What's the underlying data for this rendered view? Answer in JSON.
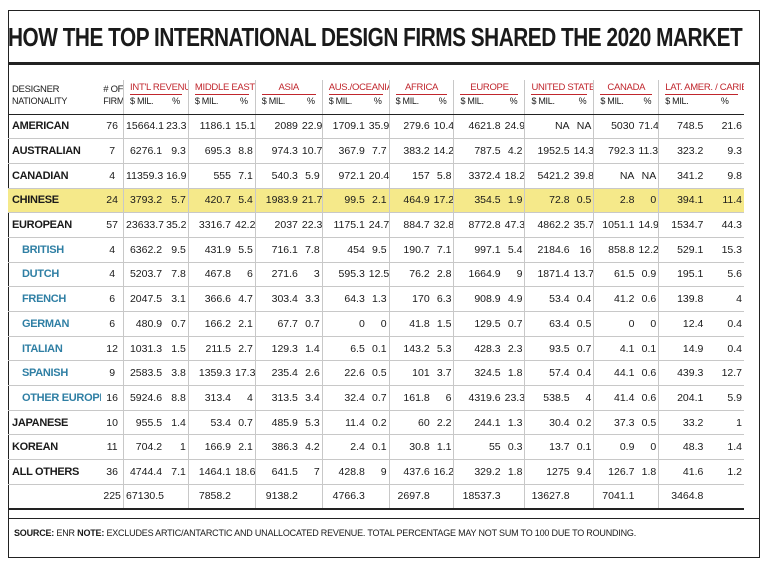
{
  "title": "HOW THE TOP INTERNATIONAL DESIGN FIRMS SHARED THE 2020 MARKET",
  "header": {
    "designer_line1": "DESIGNER",
    "designer_line2": "NATIONALITY",
    "firms_line1": "# OF",
    "firms_line2": "FIRMS",
    "regions": [
      "INT'L REVENUE",
      "MIDDLE EAST",
      "ASIA",
      "AUS./OCEANIA",
      "AFRICA",
      "EUROPE",
      "UNITED STATES",
      "CANADA",
      "LAT. AMER. / CARIB."
    ],
    "mil_label": "$ MIL.",
    "pct_label": "%"
  },
  "rows": [
    {
      "name": "AMERICAN",
      "firms": "76",
      "v": [
        "15664.1",
        "23.3",
        "1186.1",
        "15.1",
        "2089",
        "22.9",
        "1709.1",
        "35.9",
        "279.6",
        "10.4",
        "4621.8",
        "24.9",
        "NA",
        "NA",
        "5030",
        "71.4",
        "748.5",
        "21.6"
      ]
    },
    {
      "name": "AUSTRALIAN",
      "firms": "7",
      "v": [
        "6276.1",
        "9.3",
        "695.3",
        "8.8",
        "974.3",
        "10.7",
        "367.9",
        "7.7",
        "383.2",
        "14.2",
        "787.5",
        "4.2",
        "1952.5",
        "14.3",
        "792.3",
        "11.3",
        "323.2",
        "9.3"
      ]
    },
    {
      "name": "CANADIAN",
      "firms": "4",
      "v": [
        "11359.3",
        "16.9",
        "555",
        "7.1",
        "540.3",
        "5.9",
        "972.1",
        "20.4",
        "157",
        "5.8",
        "3372.4",
        "18.2",
        "5421.2",
        "39.8",
        "NA",
        "NA",
        "341.2",
        "9.8"
      ]
    },
    {
      "name": "CHINESE",
      "firms": "24",
      "highlight": true,
      "v": [
        "3793.2",
        "5.7",
        "420.7",
        "5.4",
        "1983.9",
        "21.7",
        "99.5",
        "2.1",
        "464.9",
        "17.2",
        "354.5",
        "1.9",
        "72.8",
        "0.5",
        "2.8",
        "0",
        "394.1",
        "11.4"
      ]
    },
    {
      "name": "EUROPEAN",
      "firms": "57",
      "v": [
        "23633.7",
        "35.2",
        "3316.7",
        "42.2",
        "2037",
        "22.3",
        "1175.1",
        "24.7",
        "884.7",
        "32.8",
        "8772.8",
        "47.3",
        "4862.2",
        "35.7",
        "1051.1",
        "14.9",
        "1534.7",
        "44.3"
      ]
    },
    {
      "name": "BRITISH",
      "firms": "4",
      "sub": true,
      "v": [
        "6362.2",
        "9.5",
        "431.9",
        "5.5",
        "716.1",
        "7.8",
        "454",
        "9.5",
        "190.7",
        "7.1",
        "997.1",
        "5.4",
        "2184.6",
        "16",
        "858.8",
        "12.2",
        "529.1",
        "15.3"
      ]
    },
    {
      "name": "DUTCH",
      "firms": "4",
      "sub": true,
      "v": [
        "5203.7",
        "7.8",
        "467.8",
        "6",
        "271.6",
        "3",
        "595.3",
        "12.5",
        "76.2",
        "2.8",
        "1664.9",
        "9",
        "1871.4",
        "13.7",
        "61.5",
        "0.9",
        "195.1",
        "5.6"
      ]
    },
    {
      "name": "FRENCH",
      "firms": "6",
      "sub": true,
      "v": [
        "2047.5",
        "3.1",
        "366.6",
        "4.7",
        "303.4",
        "3.3",
        "64.3",
        "1.3",
        "170",
        "6.3",
        "908.9",
        "4.9",
        "53.4",
        "0.4",
        "41.2",
        "0.6",
        "139.8",
        "4"
      ]
    },
    {
      "name": "GERMAN",
      "firms": "6",
      "sub": true,
      "v": [
        "480.9",
        "0.7",
        "166.2",
        "2.1",
        "67.7",
        "0.7",
        "0",
        "0",
        "41.8",
        "1.5",
        "129.5",
        "0.7",
        "63.4",
        "0.5",
        "0",
        "0",
        "12.4",
        "0.4"
      ]
    },
    {
      "name": "ITALIAN",
      "firms": "12",
      "sub": true,
      "v": [
        "1031.3",
        "1.5",
        "211.5",
        "2.7",
        "129.3",
        "1.4",
        "6.5",
        "0.1",
        "143.2",
        "5.3",
        "428.3",
        "2.3",
        "93.5",
        "0.7",
        "4.1",
        "0.1",
        "14.9",
        "0.4"
      ]
    },
    {
      "name": "SPANISH",
      "firms": "9",
      "sub": true,
      "v": [
        "2583.5",
        "3.8",
        "1359.3",
        "17.3",
        "235.4",
        "2.6",
        "22.6",
        "0.5",
        "101",
        "3.7",
        "324.5",
        "1.8",
        "57.4",
        "0.4",
        "44.1",
        "0.6",
        "439.3",
        "12.7"
      ]
    },
    {
      "name": "OTHER EUROPEAN",
      "firms": "16",
      "sub": true,
      "v": [
        "5924.6",
        "8.8",
        "313.4",
        "4",
        "313.5",
        "3.4",
        "32.4",
        "0.7",
        "161.8",
        "6",
        "4319.6",
        "23.3",
        "538.5",
        "4",
        "41.4",
        "0.6",
        "204.1",
        "5.9"
      ]
    },
    {
      "name": "JAPANESE",
      "firms": "10",
      "v": [
        "955.5",
        "1.4",
        "53.4",
        "0.7",
        "485.9",
        "5.3",
        "11.4",
        "0.2",
        "60",
        "2.2",
        "244.1",
        "1.3",
        "30.4",
        "0.2",
        "37.3",
        "0.5",
        "33.2",
        "1"
      ]
    },
    {
      "name": "KOREAN",
      "firms": "11",
      "v": [
        "704.2",
        "1",
        "166.9",
        "2.1",
        "386.3",
        "4.2",
        "2.4",
        "0.1",
        "30.8",
        "1.1",
        "55",
        "0.3",
        "13.7",
        "0.1",
        "0.9",
        "0",
        "48.3",
        "1.4"
      ]
    },
    {
      "name": "ALL OTHERS",
      "firms": "36",
      "v": [
        "4744.4",
        "7.1",
        "1464.1",
        "18.6",
        "641.5",
        "7",
        "428.8",
        "9",
        "437.6",
        "16.2",
        "329.2",
        "1.8",
        "1275",
        "9.4",
        "126.7",
        "1.8",
        "41.6",
        "1.2"
      ]
    }
  ],
  "totals": {
    "firms": "225",
    "v": [
      "67130.5",
      "",
      "7858.2",
      "",
      "9138.2",
      "",
      "4766.3",
      "",
      "2697.8",
      "",
      "18537.3",
      "",
      "13627.8",
      "",
      "7041.1",
      "",
      "3464.8",
      ""
    ]
  },
  "footnote": {
    "source_label": "SOURCE:",
    "source": "ENR",
    "note_label": "NOTE:",
    "note": "EXCLUDES ARTIC/ANTARCTIC AND UNALLOCATED REVENUE. TOTAL PERCENTAGE MAY NOT SUM TO 100 DUE TO ROUNDING."
  },
  "colors": {
    "highlight": "#f5e98a",
    "header_red": "#c0262d",
    "sub_blue": "#2f7fa4"
  }
}
